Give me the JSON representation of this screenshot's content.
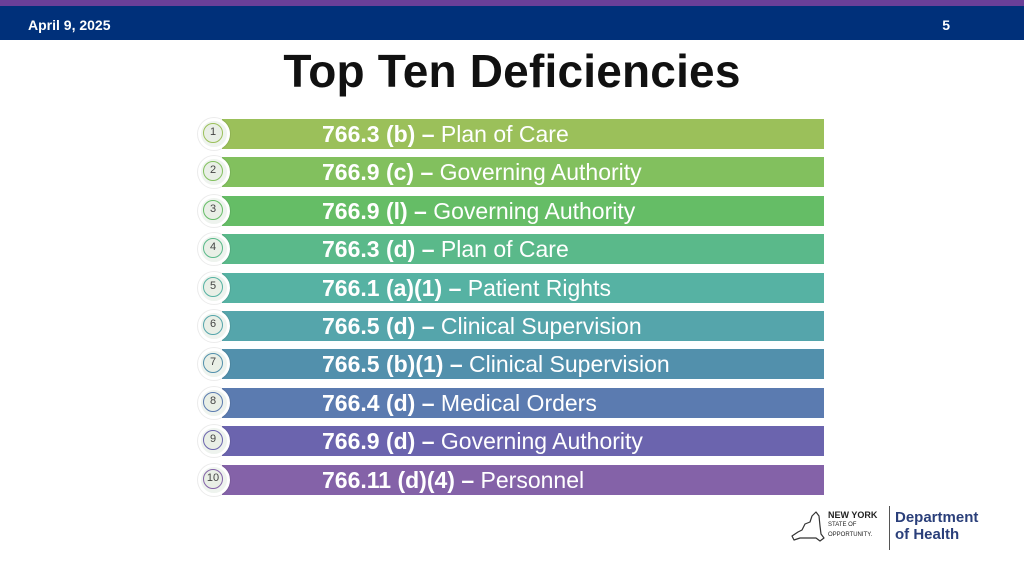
{
  "header": {
    "date": "April 9, 2025",
    "page_number": "5"
  },
  "title": "Top Ten Deficiencies",
  "deficiencies": [
    {
      "number": "1",
      "code": "766.3 (b)",
      "dash": "–",
      "description": "Plan of Care",
      "color": "#9bc05a"
    },
    {
      "number": "2",
      "code": "766.9 (c)",
      "dash": "–",
      "description": "Governing Authority",
      "color": "#82c05e"
    },
    {
      "number": "3",
      "code": "766.9 (l)",
      "dash": "–",
      "description": "Governing Authority",
      "color": "#65bd66"
    },
    {
      "number": "4",
      "code": "766.3 (d)",
      "dash": "–",
      "description": "Plan of Care",
      "color": "#5ab98a"
    },
    {
      "number": "5",
      "code": "766.1 (a)(1)",
      "dash": "–",
      "description": "Patient Rights",
      "color": "#56b2a3"
    },
    {
      "number": "6",
      "code": "766.5 (d)",
      "dash": "–",
      "description": "Clinical Supervision",
      "color": "#55a5ab"
    },
    {
      "number": "7",
      "code": "766.5 (b)(1)",
      "dash": "–",
      "description": "Clinical Supervision",
      "color": "#5290ac"
    },
    {
      "number": "8",
      "code": "766.4 (d)",
      "dash": "–",
      "description": "Medical Orders",
      "color": "#5b7bb0"
    },
    {
      "number": "9",
      "code": "766.9 (d)",
      "dash": "–",
      "description": "Governing Authority",
      "color": "#6b64ae"
    },
    {
      "number": "10",
      "code": "766.11 (d)(4)",
      "dash": "–",
      "description": "Personnel",
      "color": "#8462a8"
    }
  ],
  "logo": {
    "state_name": "NEW YORK",
    "state_tagline_1": "STATE OF",
    "state_tagline_2": "OPPORTUNITY.",
    "agency_line_1": "Department",
    "agency_line_2": "of Health"
  }
}
